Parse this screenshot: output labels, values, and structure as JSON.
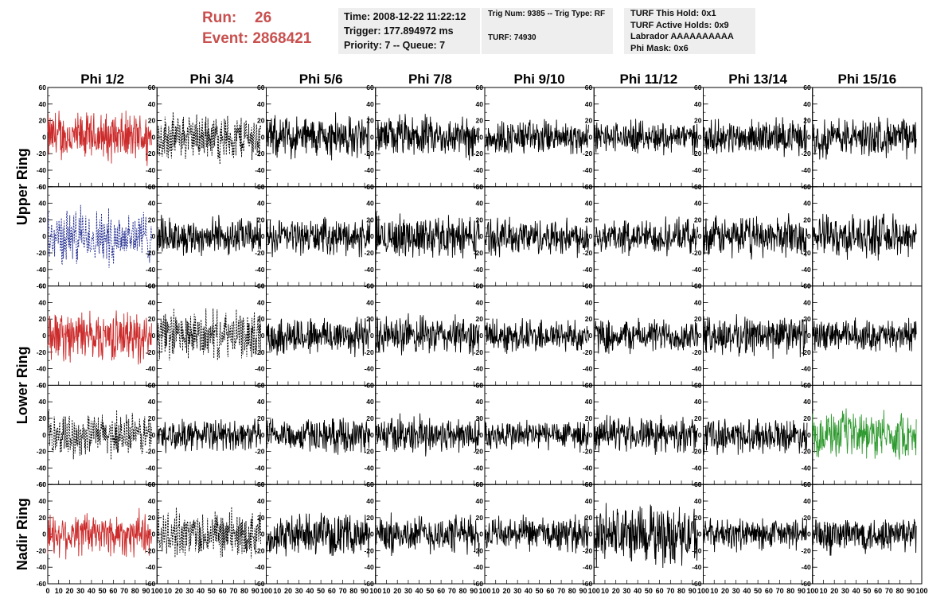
{
  "header": {
    "run_label": "Run:",
    "run_value": "26",
    "event_label": "Event:",
    "event_value": "2868421",
    "time_text": "Time: 2008-12-22 11:22:12",
    "trigger_text": "Trigger: 177.894972 ms",
    "priority_text": "Priority: 7 -- Queue: 7",
    "trig_num_text": "Trig Num: 9385 -- Trig Type: RF",
    "turf_text": "TURF: 74930",
    "turf_this_hold": "TURF This Hold: 0x1",
    "turf_active_holds": "TURF Active Holds: 0x9",
    "labrador": "Labrador AAAAAAAAAA",
    "phi_mask": "Phi Mask: 0x6"
  },
  "chart_data": {
    "type": "line",
    "columns": [
      "Phi 1/2",
      "Phi 3/4",
      "Phi 5/6",
      "Phi 7/8",
      "Phi 9/10",
      "Phi 11/12",
      "Phi 13/14",
      "Phi 15/16"
    ],
    "ring_labels": [
      {
        "text": "Upper Ring",
        "rows": [
          0,
          1
        ]
      },
      {
        "text": "Lower Ring",
        "rows": [
          2,
          3
        ]
      },
      {
        "text": "Nadir Ring",
        "rows": [
          4
        ]
      }
    ],
    "rows": 5,
    "xlim": [
      0,
      100
    ],
    "ylim": [
      -60,
      60
    ],
    "y_ticks": [
      -60,
      -40,
      -20,
      0,
      20,
      40,
      60
    ],
    "x_ticks": [
      0,
      10,
      20,
      30,
      40,
      50,
      60,
      70,
      80,
      90,
      100
    ],
    "samples_per_trace": 260,
    "trace_x_end": 95,
    "colors": {
      "red": "#cc2b2b",
      "blue": "#1f2a8f",
      "green": "#2f9a2f",
      "black": "#000000"
    },
    "panel_styles": [
      [
        "red",
        "dashed-black",
        "black",
        "black",
        "black",
        "black",
        "black",
        "black"
      ],
      [
        "dashed-blue",
        "black",
        "black",
        "black",
        "black",
        "black",
        "black",
        "black"
      ],
      [
        "red",
        "dashed-black",
        "black",
        "black",
        "black",
        "black",
        "black",
        "black"
      ],
      [
        "dashed-black",
        "black",
        "black",
        "black",
        "black",
        "black",
        "black",
        "green"
      ],
      [
        "red",
        "dashed-black",
        "black",
        "black",
        "black",
        "black",
        "black",
        "black"
      ]
    ],
    "peak_amplitudes": [
      [
        35,
        33,
        30,
        28,
        25,
        22,
        24,
        27
      ],
      [
        38,
        26,
        25,
        30,
        26,
        24,
        28,
        30
      ],
      [
        35,
        33,
        28,
        27,
        24,
        24,
        28,
        22
      ],
      [
        30,
        22,
        24,
        26,
        22,
        24,
        24,
        32
      ],
      [
        32,
        33,
        28,
        27,
        24,
        42,
        22,
        26
      ]
    ]
  }
}
